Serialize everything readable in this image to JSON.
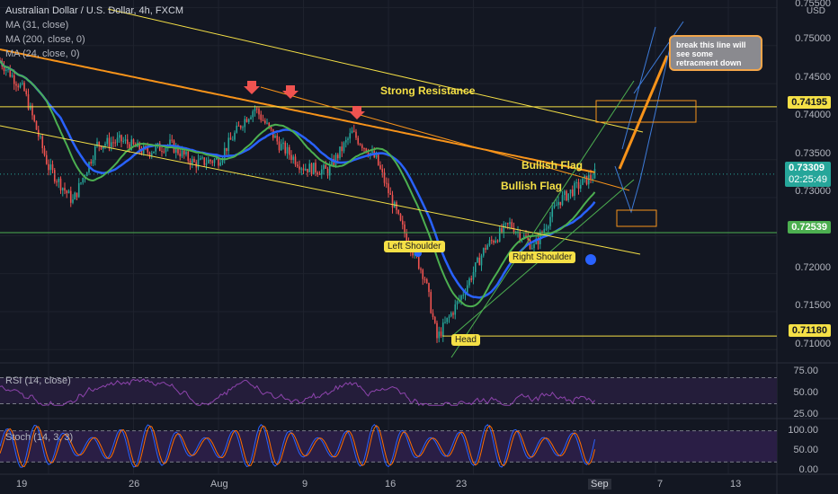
{
  "legend": {
    "title": "Australian Dollar / U.S. Dollar, 4h, FXCM",
    "indicators": [
      "MA (31, close)",
      "MA (200, close, 0)",
      "MA (24, close, 0)"
    ]
  },
  "currency": "USD",
  "price_axis": {
    "ticks": [
      "0.75500",
      "0.75000",
      "0.74500",
      "0.74000",
      "0.73500",
      "0.73000",
      "0.72500",
      "0.72000",
      "0.71500",
      "0.71000"
    ],
    "tags": [
      {
        "label": "0.74195",
        "color": "#f5e046"
      },
      {
        "label": "0.73309",
        "color": "#26a69a",
        "countdown": "02:25:49"
      },
      {
        "label": "0.72539",
        "color": "#4caf50"
      },
      {
        "label": "0.71180",
        "color": "#f5e046"
      }
    ]
  },
  "time_axis": {
    "ticks": [
      "19",
      "26",
      "Aug",
      "9",
      "16",
      "23",
      "Sep",
      "7",
      "13"
    ]
  },
  "annotations": {
    "strong_resistance": "Strong Resistance",
    "bullish_flag_1": "Bullish Flag",
    "bullish_flag_2": "Bullish Flag",
    "left_shoulder": "Left Shoulder",
    "right_shoulder": "Right Shoulder",
    "head": "Head",
    "note": "break this line will see some retracment down"
  },
  "rsi": {
    "label": "RSI (14, close)",
    "ticks": [
      "75.00",
      "50.00",
      "25.00"
    ]
  },
  "stoch": {
    "label": "Stoch (14, 3, 3)",
    "ticks": [
      "100.00",
      "50.00",
      "0.00"
    ]
  },
  "colors": {
    "up": "#26a69a",
    "down": "#ef5350",
    "ma31": "#2962ff",
    "ma200": "#f7931a",
    "ma24": "#4caf50",
    "yellow": "#f5e046"
  },
  "chart_data": {
    "type": "candlestick",
    "symbol": "AUDUSD",
    "timeframe": "4h",
    "ylim": [
      0.7085,
      0.756
    ],
    "x_range": [
      "2021-07-15",
      "2021-09-17"
    ],
    "key_levels": [
      0.74195,
      0.72539,
      0.7118
    ],
    "last_price": 0.73309,
    "close_path": [
      [
        "2021-07-15",
        0.748
      ],
      [
        "2021-07-17",
        0.744
      ],
      [
        "2021-07-19",
        0.734
      ],
      [
        "2021-07-21",
        0.7295
      ],
      [
        "2021-07-23",
        0.737
      ],
      [
        "2021-07-25",
        0.7375
      ],
      [
        "2021-07-27",
        0.736
      ],
      [
        "2021-07-29",
        0.737
      ],
      [
        "2021-07-31",
        0.7345
      ],
      [
        "2021-08-02",
        0.735
      ],
      [
        "2021-08-04",
        0.74
      ],
      [
        "2021-08-05",
        0.7418
      ],
      [
        "2021-08-07",
        0.737
      ],
      [
        "2021-08-09",
        0.734
      ],
      [
        "2021-08-11",
        0.7335
      ],
      [
        "2021-08-13",
        0.7385
      ],
      [
        "2021-08-15",
        0.735
      ],
      [
        "2021-08-17",
        0.7265
      ],
      [
        "2021-08-19",
        0.7195
      ],
      [
        "2021-08-20",
        0.7115
      ],
      [
        "2021-08-22",
        0.717
      ],
      [
        "2021-08-24",
        0.7235
      ],
      [
        "2021-08-26",
        0.7265
      ],
      [
        "2021-08-28",
        0.7235
      ],
      [
        "2021-08-30",
        0.7295
      ],
      [
        "2021-09-01",
        0.732
      ],
      [
        "2021-09-02",
        0.7331
      ]
    ],
    "rsi_range": [
      0,
      100
    ],
    "stoch_range": [
      0,
      100
    ]
  }
}
